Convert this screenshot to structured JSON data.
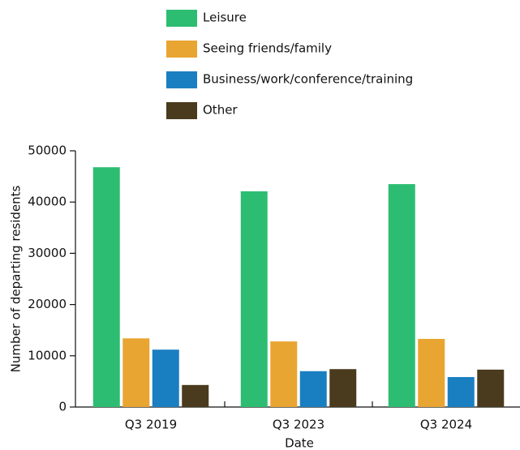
{
  "chart_data": {
    "type": "bar",
    "x_label": "Date",
    "y_label": "Number of departing residents",
    "categories": [
      "Q3 2019",
      "Q3 2023",
      "Q3 2024"
    ],
    "series": [
      {
        "name": "Leisure",
        "color": "#2dbd72",
        "values": [
          46800,
          42100,
          43500
        ]
      },
      {
        "name": "Seeing friends/family",
        "color": "#e8a531",
        "values": [
          13400,
          12800,
          13300
        ]
      },
      {
        "name": "Business/work/conference/training",
        "color": "#1a7fc1",
        "values": [
          11200,
          7000,
          5850
        ]
      },
      {
        "name": "Other",
        "color": "#4a3b1e",
        "values": [
          4300,
          7400,
          7300
        ]
      }
    ],
    "ylim": [
      0,
      50000
    ],
    "yticks": [
      0,
      10000,
      20000,
      30000,
      40000,
      50000
    ],
    "grid": false,
    "legend": "top"
  }
}
